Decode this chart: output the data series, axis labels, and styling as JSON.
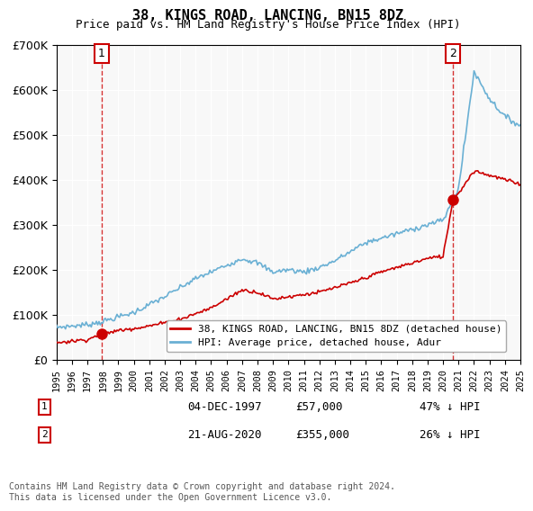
{
  "title": "38, KINGS ROAD, LANCING, BN15 8DZ",
  "subtitle": "Price paid vs. HM Land Registry's House Price Index (HPI)",
  "hpi_label": "HPI: Average price, detached house, Adur",
  "price_label": "38, KINGS ROAD, LANCING, BN15 8DZ (detached house)",
  "annotation1_date": "04-DEC-1997",
  "annotation1_price": "£57,000",
  "annotation1_hpi": "47% ↓ HPI",
  "annotation2_date": "21-AUG-2020",
  "annotation2_price": "£355,000",
  "annotation2_hpi": "26% ↓ HPI",
  "footer": "Contains HM Land Registry data © Crown copyright and database right 2024.\nThis data is licensed under the Open Government Licence v3.0.",
  "sale1_year": 1997.92,
  "sale1_value": 57000,
  "sale2_year": 2020.64,
  "sale2_value": 355000,
  "ylim": [
    0,
    700000
  ],
  "hpi_color": "#6ab0d4",
  "price_color": "#cc0000",
  "annot_color": "#cc0000",
  "bg_color": "#f0f0f0",
  "plot_bg": "#f8f8f8"
}
